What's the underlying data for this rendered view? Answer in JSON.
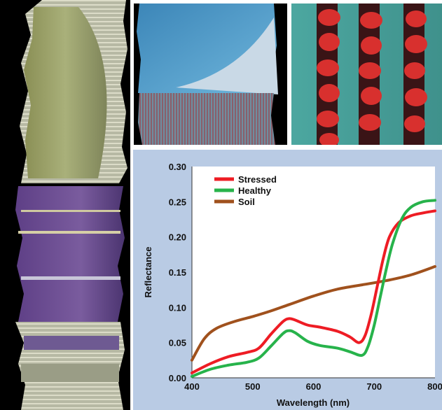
{
  "colors": {
    "panel_bg": "#b9cbe4",
    "plot_bg": "#ffffff",
    "stressed": "#ee1c24",
    "healthy": "#27b34b",
    "soil": "#a0511d"
  },
  "chart_data": {
    "type": "line",
    "title": "",
    "xlabel": "Wavelength (nm)",
    "ylabel": "Reflectance",
    "xlim": [
      400,
      800
    ],
    "ylim": [
      0,
      0.3
    ],
    "x_ticks": [
      400,
      500,
      600,
      700,
      800
    ],
    "y_ticks": [
      0.0,
      0.05,
      0.1,
      0.15,
      0.2,
      0.25,
      0.3
    ],
    "x_tick_labels": [
      "400",
      "500",
      "600",
      "700",
      "800"
    ],
    "y_tick_labels": [
      "0.00",
      "0.05",
      "0.10",
      "0.15",
      "0.20",
      "0.25",
      "0.30"
    ],
    "legend": "top-left",
    "grid": false,
    "series": [
      {
        "name": "Stressed",
        "color": "#ee1c24",
        "x": [
          400,
          430,
          460,
          490,
          510,
          530,
          550,
          560,
          570,
          590,
          610,
          640,
          660,
          675,
          685,
          695,
          705,
          715,
          725,
          740,
          760,
          780,
          800
        ],
        "y": [
          0.007,
          0.02,
          0.03,
          0.036,
          0.042,
          0.062,
          0.08,
          0.084,
          0.082,
          0.075,
          0.072,
          0.066,
          0.058,
          0.05,
          0.06,
          0.09,
          0.13,
          0.17,
          0.2,
          0.22,
          0.23,
          0.234,
          0.237
        ]
      },
      {
        "name": "Healthy",
        "color": "#27b34b",
        "x": [
          400,
          430,
          460,
          490,
          510,
          530,
          550,
          560,
          570,
          590,
          610,
          640,
          660,
          680,
          690,
          700,
          710,
          720,
          730,
          745,
          760,
          780,
          800
        ],
        "y": [
          0.002,
          0.012,
          0.018,
          0.022,
          0.028,
          0.045,
          0.063,
          0.067,
          0.064,
          0.052,
          0.046,
          0.042,
          0.037,
          0.032,
          0.045,
          0.075,
          0.115,
          0.155,
          0.19,
          0.225,
          0.242,
          0.25,
          0.252
        ]
      },
      {
        "name": "Soil",
        "color": "#a0511d",
        "x": [
          400,
          420,
          440,
          470,
          500,
          530,
          560,
          600,
          640,
          680,
          720,
          760,
          800
        ],
        "y": [
          0.025,
          0.055,
          0.07,
          0.08,
          0.087,
          0.095,
          0.104,
          0.116,
          0.126,
          0.132,
          0.138,
          0.146,
          0.158
        ]
      }
    ]
  }
}
